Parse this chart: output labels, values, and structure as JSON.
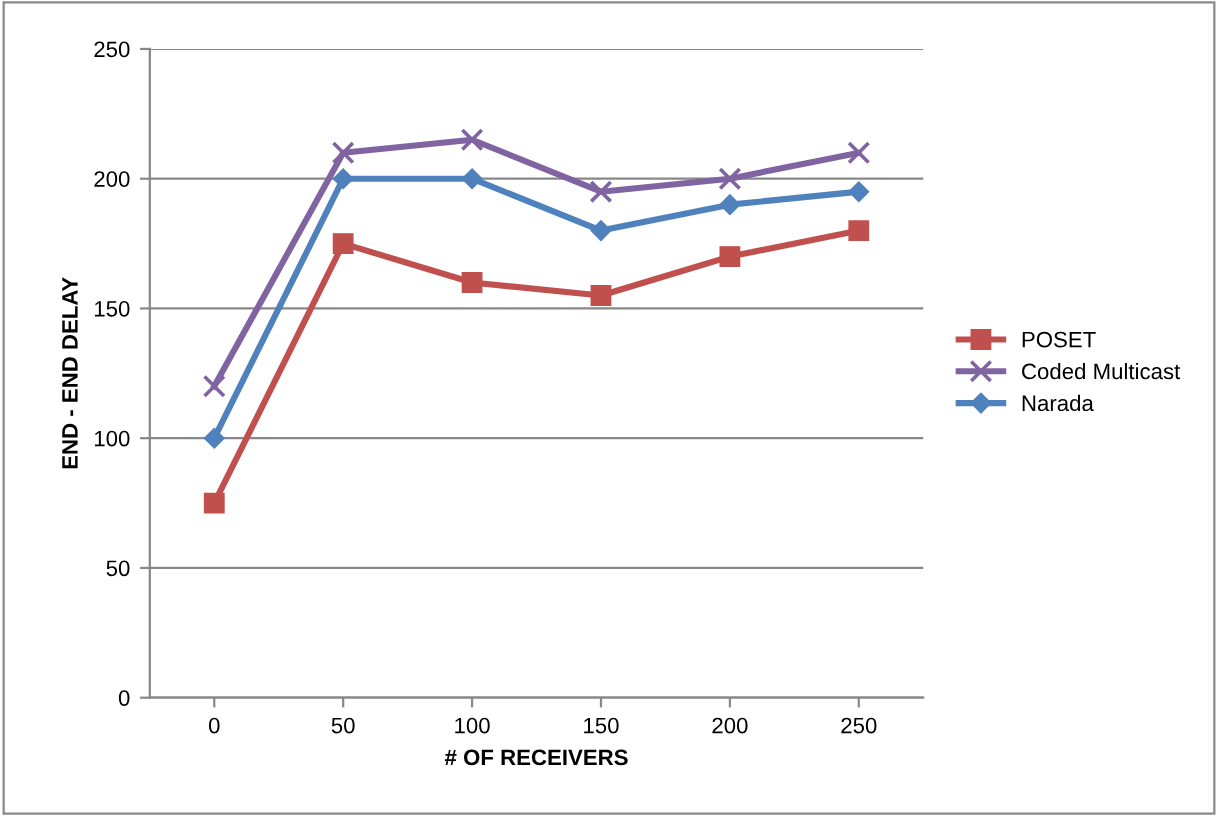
{
  "chart_data": {
    "type": "line",
    "xlabel": "# OF RECEIVERS",
    "ylabel": "END - END DELAY",
    "categories": [
      "0",
      "50",
      "100",
      "150",
      "200",
      "250"
    ],
    "series": [
      {
        "name": "POSET",
        "color": "#c0504d",
        "marker": "square",
        "values": [
          75,
          175,
          160,
          155,
          170,
          180
        ]
      },
      {
        "name": "Coded Multicast",
        "color": "#8064a2",
        "marker": "cross",
        "values": [
          120,
          210,
          215,
          195,
          200,
          210
        ]
      },
      {
        "name": "Narada",
        "color": "#4f81bd",
        "marker": "diamond",
        "values": [
          100,
          200,
          200,
          180,
          190,
          195
        ]
      }
    ],
    "ylim": [
      0,
      250
    ],
    "yticks": [
      0,
      50,
      100,
      150,
      200,
      250
    ],
    "grid": "y",
    "legend": "right",
    "line_style": "solid"
  }
}
